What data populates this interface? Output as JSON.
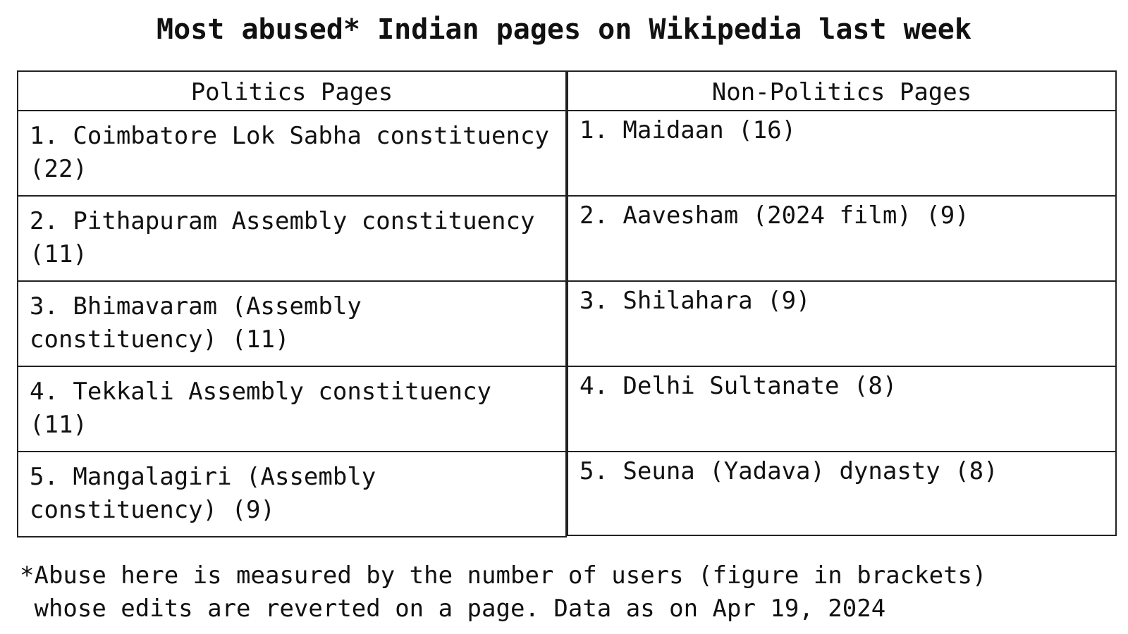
{
  "chart_data": {
    "type": "table",
    "title": "Most abused* Indian pages on Wikipedia last week",
    "columns": [
      "Politics Pages",
      "Non-Politics Pages"
    ],
    "rows": [
      [
        "1. Coimbatore Lok Sabha constituency (22)",
        "1. Maidaan (16)"
      ],
      [
        "2. Pithapuram Assembly constituency (11)",
        "2. Aavesham (2024 film) (9)"
      ],
      [
        "3. Bhimavaram (Assembly constituency) (11)",
        "3. Shilahara (9)"
      ],
      [
        "4. Tekkali Assembly constituency (11)",
        "4. Delhi Sultanate (8)"
      ],
      [
        "5. Mangalagiri (Assembly constituency) (9)",
        "5. Seuna (Yadava) dynasty (8)"
      ]
    ],
    "values": {
      "Politics Pages": [
        {
          "rank": 1,
          "page": "Coimbatore Lok Sabha constituency",
          "users": 22
        },
        {
          "rank": 2,
          "page": "Pithapuram Assembly constituency",
          "users": 11
        },
        {
          "rank": 3,
          "page": "Bhimavaram (Assembly constituency)",
          "users": 11
        },
        {
          "rank": 4,
          "page": "Tekkali Assembly constituency",
          "users": 11
        },
        {
          "rank": 5,
          "page": "Mangalagiri (Assembly constituency)",
          "users": 9
        }
      ],
      "Non-Politics Pages": [
        {
          "rank": 1,
          "page": "Maidaan",
          "users": 16
        },
        {
          "rank": 2,
          "page": "Aavesham (2024 film)",
          "users": 9
        },
        {
          "rank": 3,
          "page": "Shilahara",
          "users": 9
        },
        {
          "rank": 4,
          "page": "Delhi Sultanate",
          "users": 8
        },
        {
          "rank": 5,
          "page": "Seuna (Yadava) dynasty",
          "users": 8
        }
      ]
    },
    "footnote": "*Abuse here is measured by the number of users (figure in brackets)\n whose edits are reverted on a page. Data as on Apr 19, 2024"
  }
}
